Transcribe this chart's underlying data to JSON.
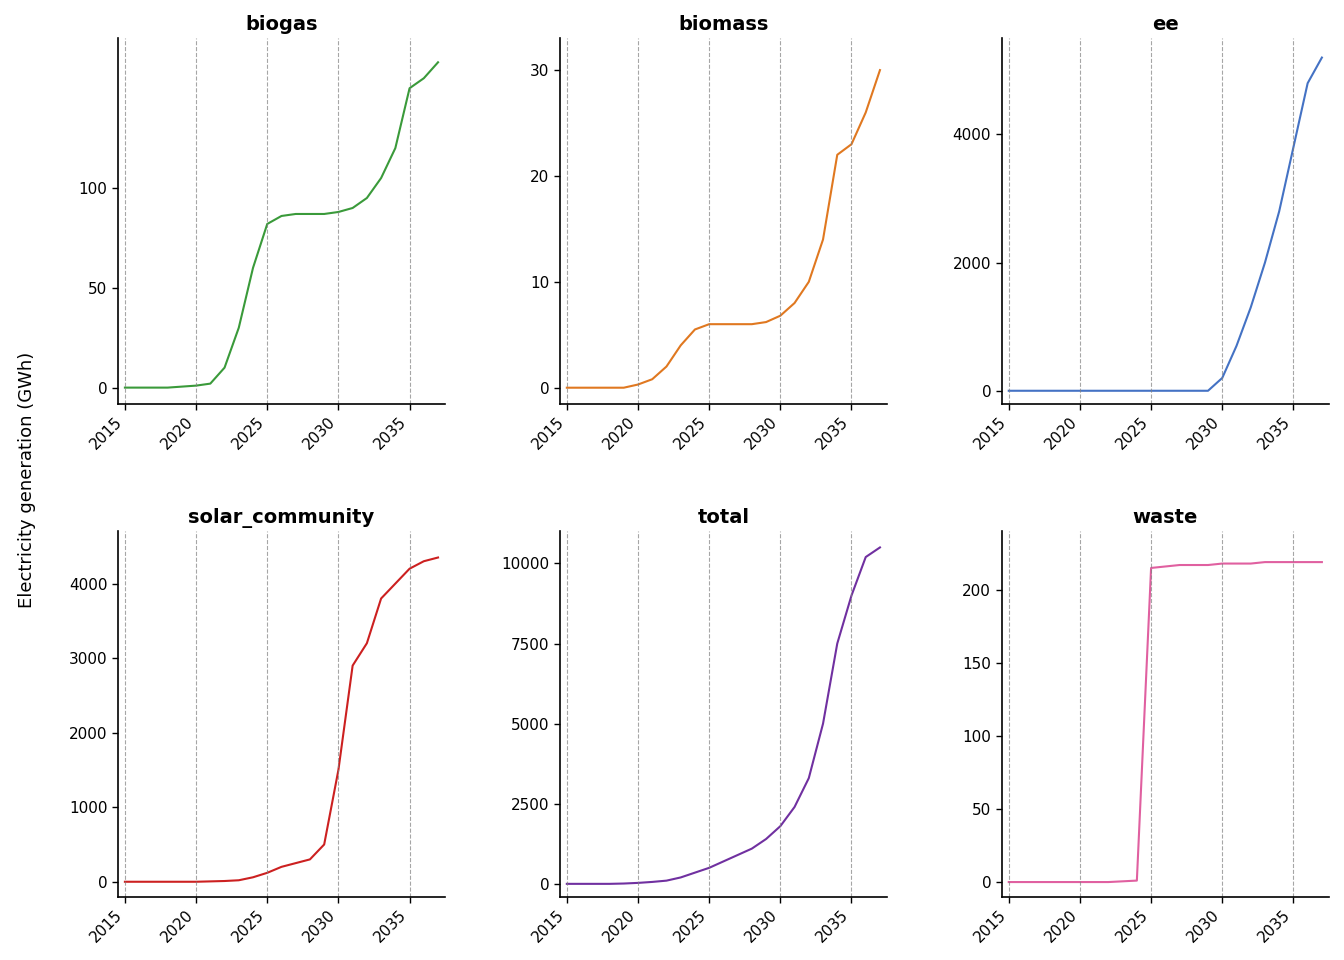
{
  "subplots": [
    {
      "title": "biogas",
      "color": "#3a9a3a",
      "yticks": [
        0,
        50,
        100
      ],
      "ylim": [
        -8,
        175
      ],
      "data_x": [
        2015,
        2016,
        2017,
        2018,
        2019,
        2020,
        2021,
        2022,
        2023,
        2024,
        2025,
        2026,
        2027,
        2028,
        2029,
        2030,
        2031,
        2032,
        2033,
        2034,
        2035,
        2036,
        2037
      ],
      "data_y": [
        0,
        0,
        0,
        0,
        0.5,
        1,
        2,
        10,
        30,
        60,
        82,
        86,
        87,
        87,
        87,
        88,
        90,
        95,
        105,
        120,
        150,
        155,
        163
      ]
    },
    {
      "title": "biomass",
      "color": "#e07820",
      "yticks": [
        0,
        10,
        20,
        30
      ],
      "ylim": [
        -1.5,
        33
      ],
      "data_x": [
        2015,
        2016,
        2017,
        2018,
        2019,
        2020,
        2021,
        2022,
        2023,
        2024,
        2025,
        2026,
        2027,
        2028,
        2029,
        2030,
        2031,
        2032,
        2033,
        2034,
        2035,
        2036,
        2037
      ],
      "data_y": [
        0,
        0,
        0,
        0,
        0,
        0.3,
        0.8,
        2,
        4,
        5.5,
        6,
        6,
        6,
        6,
        6.2,
        6.8,
        8,
        10,
        14,
        22,
        23,
        26,
        30
      ]
    },
    {
      "title": "ee",
      "color": "#4472c4",
      "yticks": [
        0,
        2000,
        4000
      ],
      "ylim": [
        -200,
        5500
      ],
      "data_x": [
        2015,
        2016,
        2017,
        2018,
        2019,
        2020,
        2021,
        2022,
        2023,
        2024,
        2025,
        2026,
        2027,
        2028,
        2029,
        2030,
        2031,
        2032,
        2033,
        2034,
        2035,
        2036,
        2037
      ],
      "data_y": [
        0,
        0,
        0,
        0,
        0,
        0,
        0,
        0,
        0,
        0,
        0,
        0,
        0,
        0,
        0,
        200,
        700,
        1300,
        2000,
        2800,
        3800,
        4800,
        5200
      ]
    },
    {
      "title": "solar_community",
      "color": "#cc2020",
      "yticks": [
        0,
        1000,
        2000,
        3000,
        4000
      ],
      "ylim": [
        -200,
        4700
      ],
      "data_x": [
        2015,
        2016,
        2017,
        2018,
        2019,
        2020,
        2021,
        2022,
        2023,
        2024,
        2025,
        2026,
        2027,
        2028,
        2029,
        2030,
        2031,
        2032,
        2033,
        2034,
        2035,
        2036,
        2037
      ],
      "data_y": [
        0,
        0,
        0,
        0,
        0,
        0,
        5,
        10,
        20,
        60,
        120,
        200,
        250,
        300,
        500,
        1500,
        2900,
        3200,
        3800,
        4000,
        4200,
        4300,
        4350
      ]
    },
    {
      "title": "total",
      "color": "#7030a0",
      "yticks": [
        0,
        2500,
        5000,
        7500,
        10000
      ],
      "ylim": [
        -400,
        11000
      ],
      "data_x": [
        2015,
        2016,
        2017,
        2018,
        2019,
        2020,
        2021,
        2022,
        2023,
        2024,
        2025,
        2026,
        2027,
        2028,
        2029,
        2030,
        2031,
        2032,
        2033,
        2034,
        2035,
        2036,
        2037
      ],
      "data_y": [
        0,
        0,
        0,
        0,
        10,
        30,
        60,
        100,
        200,
        350,
        500,
        700,
        900,
        1100,
        1400,
        1800,
        2400,
        3300,
        5000,
        7500,
        9000,
        10200,
        10500
      ]
    },
    {
      "title": "waste",
      "color": "#e060a0",
      "yticks": [
        0,
        50,
        100,
        150,
        200
      ],
      "ylim": [
        -10,
        240
      ],
      "data_x": [
        2015,
        2016,
        2017,
        2018,
        2019,
        2020,
        2021,
        2022,
        2023,
        2024,
        2025,
        2026,
        2027,
        2028,
        2029,
        2030,
        2031,
        2032,
        2033,
        2034,
        2035,
        2036,
        2037
      ],
      "data_y": [
        0,
        0,
        0,
        0,
        0,
        0,
        0,
        0,
        0.5,
        1,
        215,
        216,
        217,
        217,
        217,
        218,
        218,
        218,
        219,
        219,
        219,
        219,
        219
      ]
    }
  ],
  "vlines": [
    2015,
    2020,
    2025,
    2030,
    2035
  ],
  "xticks": [
    2015,
    2020,
    2025,
    2030,
    2035
  ],
  "xlim": [
    2014.5,
    2037.5
  ],
  "ylabel": "Electricity generation (GWh)",
  "background_color": "#ffffff",
  "title_fontsize": 14,
  "tick_fontsize": 11,
  "ylabel_fontsize": 13
}
